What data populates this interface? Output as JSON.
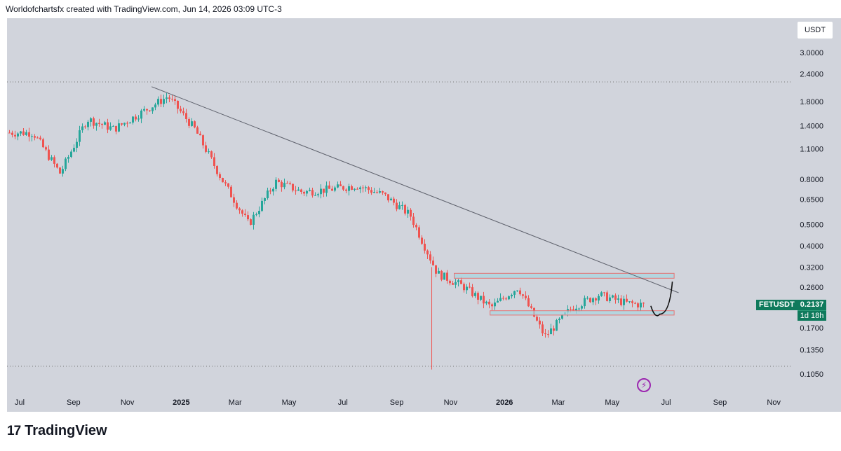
{
  "header": {
    "caption": "Worldofchartsfx created with TradingView.com, Jun 14, 2026 03:09 UTC-3"
  },
  "currency_badge": "USDT",
  "symbol_tag": {
    "symbol": "FETUSDT",
    "price": "0.2137",
    "countdown": "1d 18h"
  },
  "footer": {
    "brand": "TradingView"
  },
  "icons": {
    "logo": "tradingview-logo-icon",
    "flash": "flash-icon"
  },
  "colors": {
    "up": "#26a69a",
    "down": "#ef5350",
    "background": "#d1d4dc",
    "trendline": "#5d606b",
    "zone_fill": "#a9d6e0",
    "zone_border": "#e57373"
  },
  "chart_data": {
    "type": "candlestick",
    "scale": "log",
    "title": "",
    "xlabel": "",
    "ylabel": "",
    "ylim": [
      0.1,
      3.5
    ],
    "y_ticks": [
      "3.0000",
      "2.4000",
      "1.8000",
      "1.4000",
      "1.1000",
      "0.8000",
      "0.6500",
      "0.5000",
      "0.4000",
      "0.3200",
      "0.2600",
      "0.2137",
      "0.1700",
      "0.1350",
      "0.1050"
    ],
    "x_ticks": [
      "Jul",
      "Sep",
      "Nov",
      "2025",
      "Mar",
      "May",
      "Jul",
      "Sep",
      "Nov",
      "2026",
      "Mar",
      "May",
      "Jul",
      "Sep",
      "Nov"
    ],
    "series": [
      {
        "approx_close_by_month": [
          {
            "x": "2024-07",
            "y": 1.3
          },
          {
            "x": "2024-08",
            "y": 0.85
          },
          {
            "x": "2024-09",
            "y": 1.5
          },
          {
            "x": "2024-10",
            "y": 1.35
          },
          {
            "x": "2024-11",
            "y": 1.6
          },
          {
            "x": "2024-12",
            "y": 1.9
          },
          {
            "x": "2025-01",
            "y": 1.35
          },
          {
            "x": "2025-02",
            "y": 0.8
          },
          {
            "x": "2025-03",
            "y": 0.5
          },
          {
            "x": "2025-04",
            "y": 0.78
          },
          {
            "x": "2025-05",
            "y": 0.7
          },
          {
            "x": "2025-06",
            "y": 0.72
          },
          {
            "x": "2025-07",
            "y": 0.75
          },
          {
            "x": "2025-08",
            "y": 0.68
          },
          {
            "x": "2025-09",
            "y": 0.55
          },
          {
            "x": "2025-10",
            "y": 0.3
          },
          {
            "x": "2025-11",
            "y": 0.26
          },
          {
            "x": "2025-12",
            "y": 0.21
          },
          {
            "x": "2026-01",
            "y": 0.26
          },
          {
            "x": "2026-02",
            "y": 0.155
          },
          {
            "x": "2026-03",
            "y": 0.21
          },
          {
            "x": "2026-04",
            "y": 0.24
          },
          {
            "x": "2026-05",
            "y": 0.22
          },
          {
            "x": "2026-06",
            "y": 0.2137
          }
        ]
      }
    ],
    "annotations": {
      "trendline": {
        "from": {
          "x": "2024-11-28",
          "y": 2.1
        },
        "to": {
          "x": "2026-07-15",
          "y": 0.245
        }
      },
      "resistance_zone": {
        "from": "2025-11-05",
        "to": "2026-07-10",
        "top": 0.3,
        "bottom": 0.285
      },
      "support_zone": {
        "from": "2025-12-15",
        "to": "2026-07-10",
        "top": 0.203,
        "bottom": 0.194
      },
      "dotted_level_high": 2.2,
      "dotted_level_low": 0.11,
      "wick_low": 0.11,
      "projection": {
        "points": [
          {
            "x": "2026-06-14",
            "y": 0.2137
          },
          {
            "x": "2026-06-24",
            "y": 0.196
          },
          {
            "x": "2026-07-08",
            "y": 0.275
          }
        ]
      }
    }
  }
}
